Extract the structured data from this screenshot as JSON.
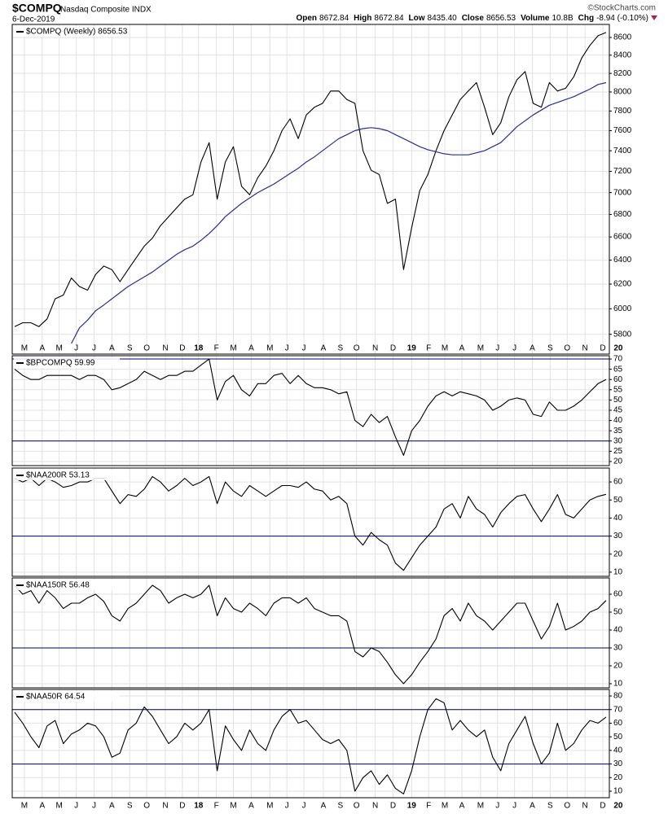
{
  "header": {
    "symbol": "$COMPQ",
    "name": "Nasdaq Composite INDX",
    "date": "6-Dec-2019",
    "copyright": "©StockCharts.com",
    "quote": [
      {
        "label": "Open",
        "value": "8672.84"
      },
      {
        "label": "High",
        "value": "8672.84"
      },
      {
        "label": "Low",
        "value": "8435.40"
      },
      {
        "label": "Close",
        "value": "8656.53"
      },
      {
        "label": "Volume",
        "value": "10.8B"
      },
      {
        "label": "Chg",
        "value": "-8.94 (-0.10%)"
      }
    ]
  },
  "chart_data": [
    {
      "type": "line",
      "legend": "$COMPQ (Weekly) 8656.53",
      "log_scale": true,
      "grid": true,
      "xlim": [
        -0.3,
        73.4
      ],
      "ylim": [
        5650,
        8750
      ],
      "yticks": [
        5800,
        6000,
        6200,
        6400,
        6600,
        6800,
        7000,
        7200,
        7400,
        7600,
        7800,
        8000,
        8200,
        8400,
        8600
      ],
      "xticks": [
        {
          "value": 1.2,
          "label": "M"
        },
        {
          "value": 3.4,
          "label": "A"
        },
        {
          "value": 5.5,
          "label": "M"
        },
        {
          "value": 7.6,
          "label": "J"
        },
        {
          "value": 9.8,
          "label": "J"
        },
        {
          "value": 12,
          "label": "A"
        },
        {
          "value": 14.2,
          "label": "S"
        },
        {
          "value": 16.3,
          "label": "O"
        },
        {
          "value": 18.6,
          "label": "N"
        },
        {
          "value": 20.7,
          "label": "D"
        },
        {
          "value": 22.7,
          "label": "18"
        },
        {
          "value": 24.9,
          "label": "F"
        },
        {
          "value": 27,
          "label": "M"
        },
        {
          "value": 29.2,
          "label": "A"
        },
        {
          "value": 31.5,
          "label": "M"
        },
        {
          "value": 33.6,
          "label": "J"
        },
        {
          "value": 35.7,
          "label": "J"
        },
        {
          "value": 38.1,
          "label": "A"
        },
        {
          "value": 40.2,
          "label": "S"
        },
        {
          "value": 42.2,
          "label": "O"
        },
        {
          "value": 44.5,
          "label": "N"
        },
        {
          "value": 46.7,
          "label": "D"
        },
        {
          "value": 49,
          "label": "19"
        },
        {
          "value": 51.1,
          "label": "F"
        },
        {
          "value": 53.1,
          "label": "M"
        },
        {
          "value": 55.2,
          "label": "A"
        },
        {
          "value": 57.5,
          "label": "M"
        },
        {
          "value": 59.6,
          "label": "J"
        },
        {
          "value": 61.7,
          "label": "J"
        },
        {
          "value": 63.9,
          "label": "A"
        },
        {
          "value": 66.1,
          "label": "S"
        },
        {
          "value": 68.2,
          "label": "O"
        },
        {
          "value": 70.4,
          "label": "N"
        },
        {
          "value": 72.6,
          "label": "D"
        },
        {
          "value": 74.5,
          "label": "20"
        }
      ],
      "series": [
        {
          "color": "#000000",
          "values": [
            5860,
            5890,
            5890,
            5860,
            5920,
            6080,
            6110,
            6250,
            6180,
            6150,
            6280,
            6350,
            6320,
            6220,
            6320,
            6420,
            6520,
            6590,
            6700,
            6780,
            6860,
            6940,
            6980,
            7290,
            7480,
            6940,
            7290,
            7440,
            7060,
            6980,
            7140,
            7250,
            7400,
            7600,
            7720,
            7520,
            7760,
            7840,
            7880,
            8010,
            8010,
            7920,
            7880,
            7400,
            7210,
            7170,
            6900,
            6940,
            6320,
            6680,
            7020,
            7170,
            7400,
            7600,
            7760,
            7920,
            8010,
            8100,
            7840,
            7560,
            7680,
            7950,
            8130,
            8220,
            7880,
            7840,
            8100,
            8010,
            8040,
            8160,
            8370,
            8510,
            8620,
            8656.53
          ]
        },
        {
          "color": "#2a2f8f",
          "values": [
            null,
            null,
            null,
            null,
            null,
            null,
            null,
            5730,
            5850,
            5910,
            5985,
            6030,
            6080,
            6130,
            6180,
            6220,
            6260,
            6300,
            6350,
            6400,
            6450,
            6490,
            6520,
            6570,
            6630,
            6700,
            6780,
            6840,
            6900,
            6950,
            7000,
            7040,
            7080,
            7130,
            7180,
            7230,
            7290,
            7340,
            7400,
            7460,
            7520,
            7560,
            7600,
            7620,
            7630,
            7620,
            7600,
            7560,
            7520,
            7480,
            7440,
            7410,
            7390,
            7370,
            7360,
            7360,
            7360,
            7380,
            7400,
            7440,
            7480,
            7560,
            7640,
            7700,
            7760,
            7810,
            7860,
            7890,
            7920,
            7950,
            7990,
            8030,
            8080,
            8100
          ]
        }
      ]
    },
    {
      "type": "line",
      "legend": "$BPCOMPQ 59.99",
      "grid": true,
      "xlim": [
        -0.3,
        73.4
      ],
      "ylim": [
        18,
        71.6
      ],
      "yticks": [
        20,
        25,
        30,
        35,
        40,
        45,
        50,
        55,
        60,
        65,
        70
      ],
      "reference_lines": [
        70,
        30
      ],
      "reference_color": "#000066",
      "series": [
        {
          "color": "#000000",
          "values": [
            65,
            62,
            60,
            60,
            62,
            62,
            62,
            62,
            60,
            62,
            62,
            60,
            55,
            56,
            58,
            60,
            64,
            62,
            60,
            62,
            62,
            64,
            64,
            67,
            70,
            50,
            59,
            62,
            55,
            52,
            58,
            58,
            62,
            63,
            58,
            62,
            58,
            56,
            56,
            55,
            53,
            54,
            40,
            37,
            43,
            39,
            42,
            32,
            23,
            35,
            40,
            47,
            52,
            54,
            52,
            54,
            53,
            52,
            50,
            45,
            47,
            50,
            51,
            50,
            43,
            42,
            49,
            45,
            45,
            47,
            50,
            54,
            58,
            59.99
          ]
        }
      ]
    },
    {
      "type": "line",
      "legend": "$NAA200R 53.13",
      "grid": true,
      "xlim": [
        -0.3,
        73.4
      ],
      "ylim": [
        7.7,
        67.7
      ],
      "yticks": [
        10,
        20,
        30,
        40,
        50,
        60
      ],
      "reference_lines": [
        30
      ],
      "reference_color": "#000066",
      "series": [
        {
          "color": "#000000",
          "values": [
            62,
            60,
            62,
            58,
            62,
            60,
            57,
            58,
            60,
            60,
            62,
            62,
            55,
            48,
            53,
            52,
            56,
            63,
            60,
            55,
            58,
            62,
            58,
            60,
            63,
            48,
            60,
            55,
            52,
            58,
            55,
            52,
            55,
            58,
            58,
            57,
            60,
            56,
            55,
            50,
            52,
            48,
            30,
            25,
            32,
            28,
            25,
            15,
            11,
            18,
            25,
            30,
            35,
            45,
            48,
            40,
            52,
            45,
            42,
            35,
            43,
            48,
            52,
            53,
            45,
            38,
            45,
            53,
            42,
            40,
            45,
            50,
            52,
            53.13
          ]
        }
      ]
    },
    {
      "type": "line",
      "legend": "$NAA150R 56.48",
      "grid": true,
      "xlim": [
        -0.3,
        73.4
      ],
      "ylim": [
        7.7,
        69.1
      ],
      "yticks": [
        10,
        20,
        30,
        40,
        50,
        60
      ],
      "reference_lines": [
        30
      ],
      "reference_color": "#000066",
      "series": [
        {
          "color": "#000000",
          "values": [
            65,
            60,
            62,
            55,
            62,
            58,
            52,
            55,
            55,
            58,
            60,
            56,
            48,
            45,
            52,
            55,
            60,
            65,
            62,
            55,
            58,
            60,
            58,
            60,
            65,
            48,
            58,
            52,
            50,
            55,
            52,
            48,
            55,
            58,
            58,
            55,
            58,
            52,
            50,
            48,
            48,
            45,
            28,
            25,
            30,
            28,
            22,
            15,
            10,
            15,
            22,
            28,
            35,
            48,
            52,
            45,
            55,
            48,
            45,
            40,
            45,
            50,
            55,
            55,
            45,
            35,
            42,
            55,
            40,
            42,
            45,
            50,
            52,
            56.48
          ]
        }
      ]
    },
    {
      "type": "line",
      "legend": "$NAA50R 64.54",
      "grid": true,
      "xlim": [
        -0.3,
        73.4
      ],
      "ylim": [
        5.2,
        84.8
      ],
      "yticks": [
        10,
        20,
        30,
        40,
        50,
        60,
        70,
        80
      ],
      "reference_lines": [
        70,
        30
      ],
      "reference_color": "#000066",
      "xticks_from": 0,
      "series": [
        {
          "color": "#000000",
          "values": [
            68,
            60,
            50,
            42,
            58,
            62,
            45,
            52,
            55,
            60,
            58,
            50,
            35,
            38,
            55,
            60,
            72,
            65,
            55,
            45,
            50,
            60,
            55,
            60,
            70,
            25,
            58,
            48,
            40,
            55,
            45,
            40,
            55,
            65,
            70,
            60,
            62,
            55,
            48,
            45,
            48,
            40,
            10,
            20,
            25,
            15,
            22,
            12,
            8,
            25,
            50,
            70,
            78,
            75,
            55,
            62,
            55,
            50,
            55,
            35,
            25,
            45,
            55,
            65,
            45,
            30,
            38,
            60,
            40,
            45,
            55,
            62,
            60,
            64.54
          ]
        }
      ]
    }
  ]
}
